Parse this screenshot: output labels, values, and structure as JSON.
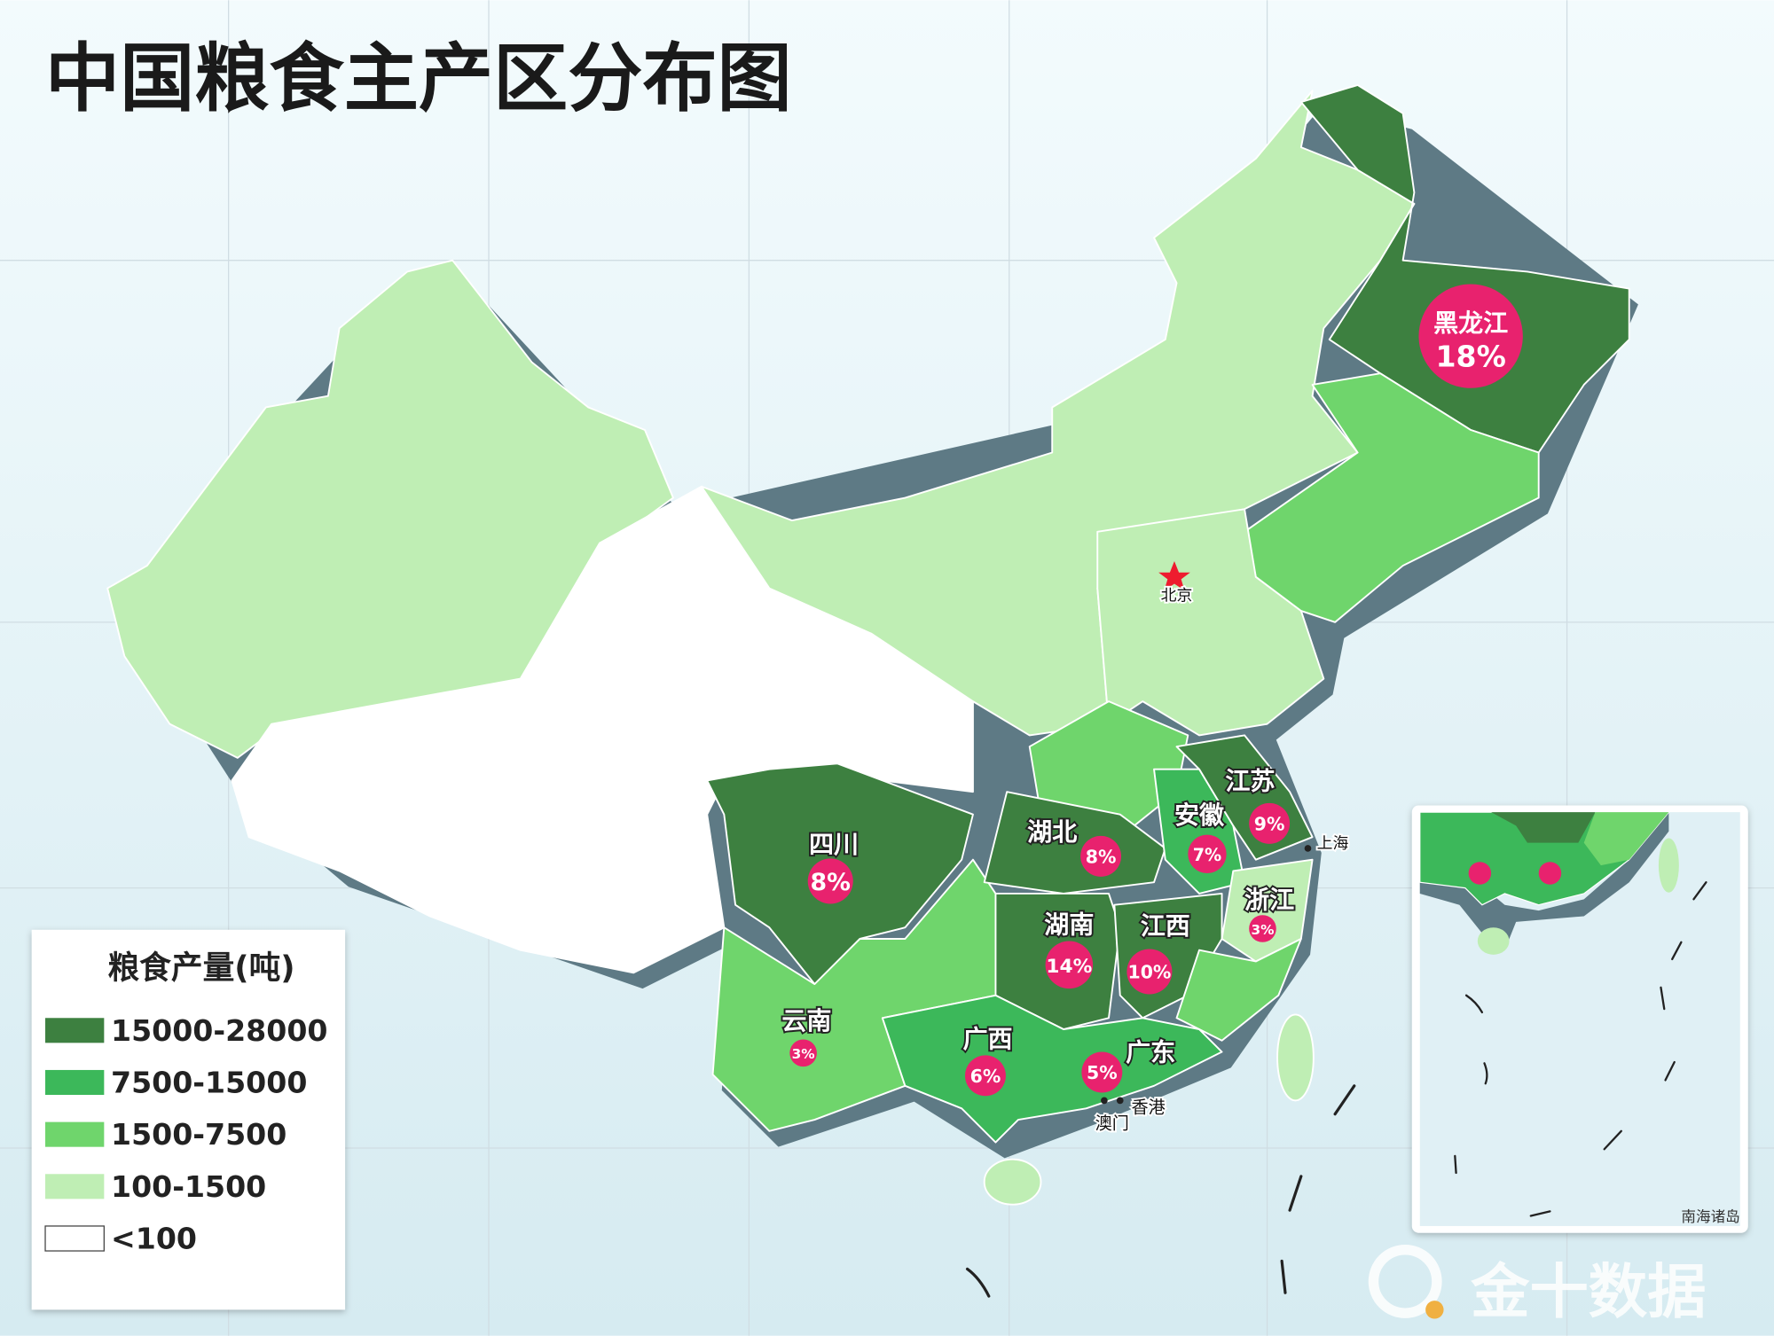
{
  "title": "中国粮食主产区分布图",
  "legend": {
    "title": "粮食产量(吨)",
    "items": [
      {
        "label": "15000-28000",
        "color": "#3d8040"
      },
      {
        "label": "7500-15000",
        "color": "#3cb85a"
      },
      {
        "label": "1500-7500",
        "color": "#6fd56c"
      },
      {
        "label": "100-1500",
        "color": "#bfeeb4"
      },
      {
        "label": "<100",
        "color": "#ffffff"
      }
    ]
  },
  "provinces": {
    "heilongjiang": {
      "name": "黑龙江",
      "share": "18%"
    },
    "sichuan": {
      "name": "四川",
      "share": "8%"
    },
    "hubei": {
      "name": "湖北",
      "share": "8%"
    },
    "anhui": {
      "name": "安徽",
      "share": "7%"
    },
    "jiangsu": {
      "name": "江苏",
      "share": "9%"
    },
    "zhejiang": {
      "name": "浙江",
      "share": "3%"
    },
    "hunan": {
      "name": "湖南",
      "share": "14%"
    },
    "jiangxi": {
      "name": "江西",
      "share": "10%"
    },
    "yunnan": {
      "name": "云南",
      "share": "3%"
    },
    "guangxi": {
      "name": "广西",
      "share": "6%"
    },
    "guangdong": {
      "name": "广东",
      "share": "5%"
    }
  },
  "cities": {
    "beijing": "北京",
    "shanghai": "上海",
    "hongkong": "香港",
    "macau": "澳门"
  },
  "inset": {
    "label": "南海诸岛"
  },
  "watermark": "金十数据",
  "colors": {
    "bubble": "#e8226e",
    "capital_star": "#ee1c2e",
    "sea": "#e3f3f8"
  }
}
